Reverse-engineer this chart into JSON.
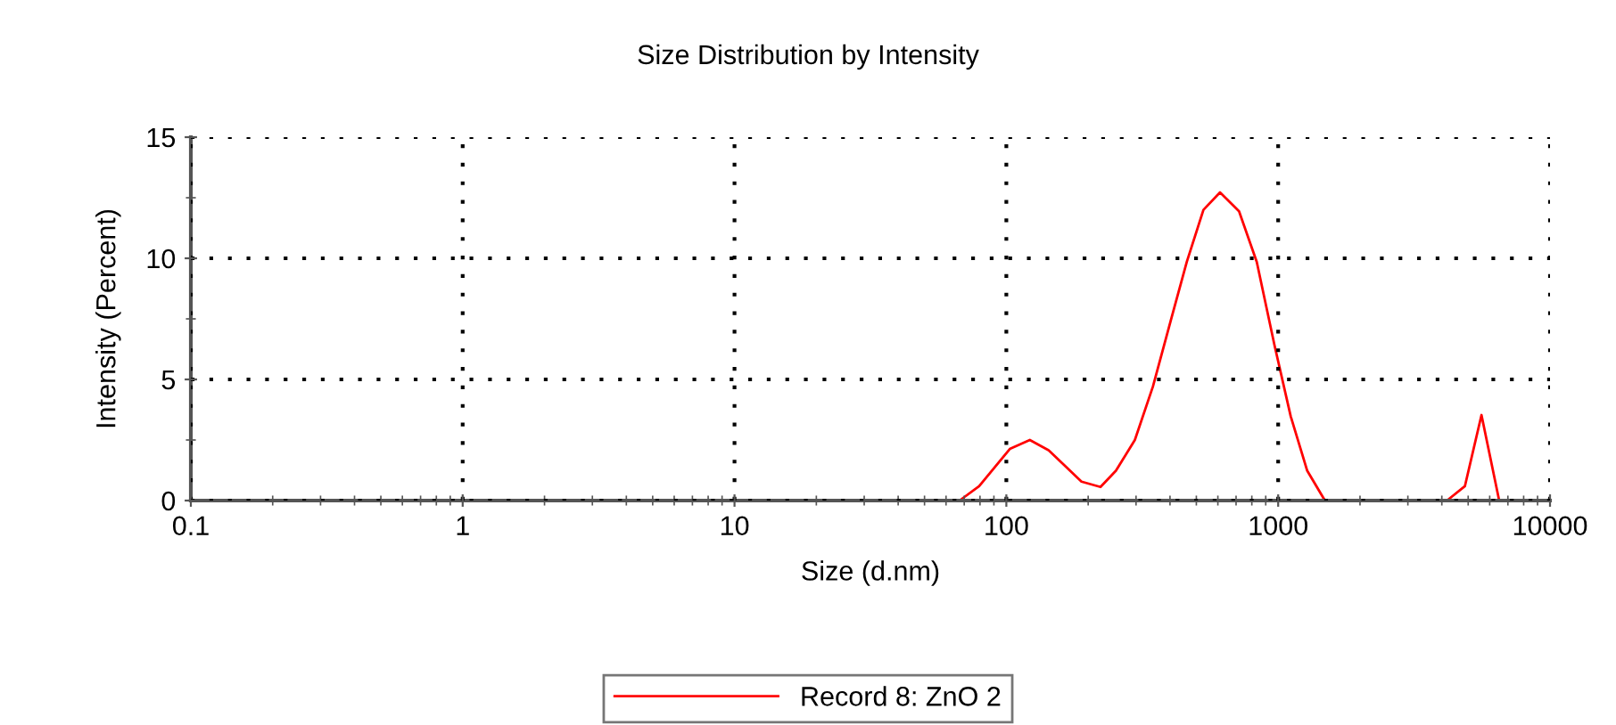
{
  "chart_data": {
    "type": "line",
    "title": "Size Distribution by Intensity",
    "xlabel": "Size (d.nm)",
    "ylabel": "Intensity (Percent)",
    "log": "x",
    "xlim": [
      0.1,
      10000
    ],
    "xticks": [
      0.1,
      1,
      10,
      100,
      1000,
      10000
    ],
    "ylim": [
      0,
      15
    ],
    "yticks": [
      0,
      5,
      10,
      15
    ],
    "grid": true,
    "legend": "bottom",
    "line_style": "solid",
    "marker": "none",
    "series": [
      {
        "name": "Record 8: ZnO 2",
        "color": "#ff0000",
        "x": [
          0.4,
          67.3,
          79.4,
          103,
          122,
          143,
          189,
          222,
          253,
          297,
          346,
          402,
          461,
          531,
          611,
          718,
          834,
          970,
          1112,
          1279,
          1486,
          4178,
          4862,
          5597,
          6502,
          10000
        ],
        "values": [
          0,
          0,
          0.59,
          2.13,
          2.5,
          2.08,
          0.78,
          0.56,
          1.23,
          2.5,
          4.7,
          7.4,
          9.85,
          12.0,
          12.72,
          11.94,
          9.85,
          6.4,
          3.48,
          1.23,
          0,
          0,
          0.59,
          3.53,
          0,
          0
        ]
      }
    ]
  }
}
